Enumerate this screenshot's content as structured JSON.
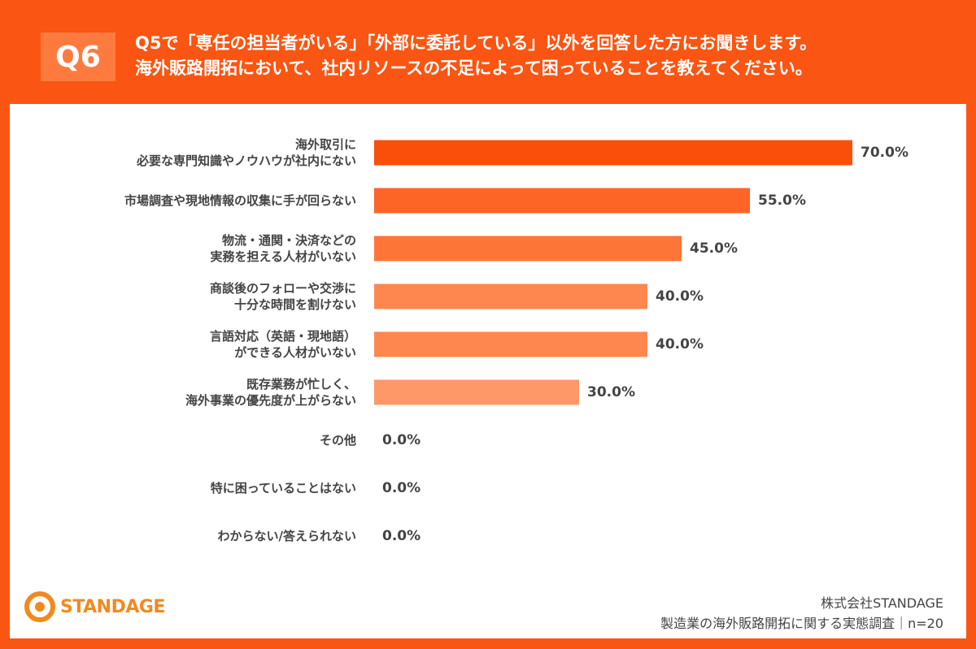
{
  "header": {
    "question": "Q6"
  },
  "chart_data": {
    "type": "bar",
    "orientation": "horizontal",
    "title": "Q5で「専任の担当者がいる」「外部に委託している」以外を回答した方にお聞きします。\n海外販路開拓において、社内リソースの不足によって困っていることを教えてください。",
    "categories": [
      "海外取引に\n必要な専門知識やノウハウが社内にない",
      "市場調査や現地情報の収集に手が回らない",
      "物流・通関・決済などの\n実務を担える人材がいない",
      "商談後のフォローや交渉に\n十分な時間を割けない",
      "言語対応（英語・現地語）\nができる人材がいない",
      "既存業務が忙しく、\n海外事業の優先度が上がらない",
      "その他",
      "特に困っていることはない",
      "わからない/答えられない"
    ],
    "values": [
      70,
      55,
      45,
      40,
      40,
      30,
      0,
      0,
      0
    ],
    "value_labels": [
      "70.0%",
      "55.0%",
      "45.0%",
      "40.0%",
      "40.0%",
      "30.0%",
      "0.0%",
      "0.0%",
      "0.0%"
    ],
    "colors": [
      "#fa4f0a",
      "#fc6526",
      "#fd7637",
      "#fe8750",
      "#fe8750",
      "#ff9868",
      "#ff9868",
      "#ff9868",
      "#ff9868"
    ]
  },
  "footer": {
    "logo": "STANDAGE",
    "company": "株式会社STANDAGE",
    "survey": "製造業の海外販路開拓に関する実態調査｜n=20"
  }
}
